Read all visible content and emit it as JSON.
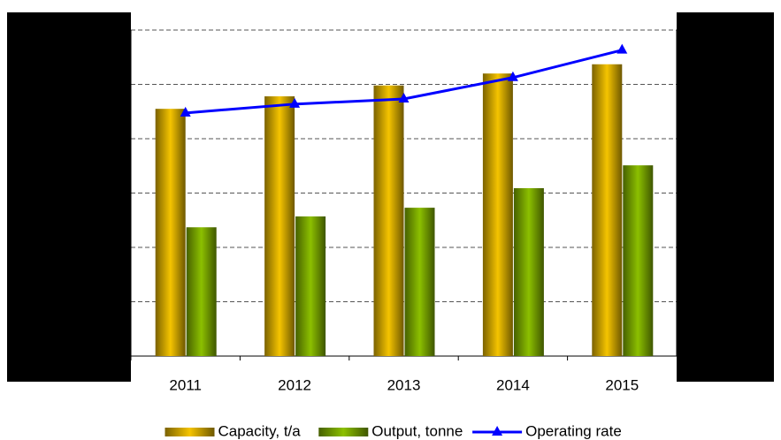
{
  "chart_data": {
    "type": "bar",
    "categories": [
      "2011",
      "2012",
      "2013",
      "2014",
      "2015"
    ],
    "series": [
      {
        "name": "Capacity, t/a",
        "color": "#f5c400",
        "values": [
          4.55,
          4.78,
          4.98,
          5.2,
          5.37
        ]
      },
      {
        "name": "Output, tonne",
        "color": "#8cc000",
        "values": [
          2.37,
          2.57,
          2.73,
          3.09,
          3.51
        ]
      },
      {
        "name": "Operating rate",
        "color": "#0000ff",
        "type": "line",
        "axis": "y2",
        "values": [
          5.22,
          5.41,
          5.52,
          5.98,
          6.57
        ]
      }
    ],
    "ylim": [
      0,
      6
    ],
    "yticks": [
      0,
      1,
      2,
      3,
      4,
      5,
      6
    ],
    "y2lim": [
      0,
      7
    ],
    "y2ticks": [
      0,
      1,
      2,
      3,
      4,
      5,
      6,
      7
    ],
    "grid": true,
    "legend": "bottom"
  }
}
